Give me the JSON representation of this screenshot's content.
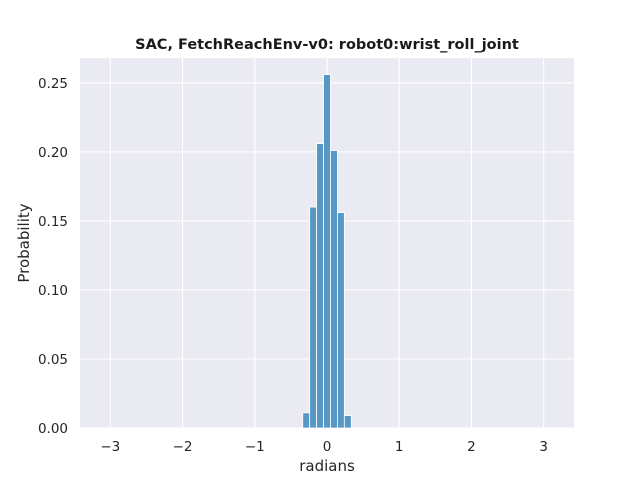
{
  "chart_data": {
    "type": "bar",
    "title": "SAC, FetchReachEnv-v0: robot0:wrist_roll_joint",
    "xlabel": "radians",
    "ylabel": "Probability",
    "xlim": [
      -3.42,
      3.42
    ],
    "ylim": [
      0,
      0.268
    ],
    "xticks": [
      -3,
      -2,
      -1,
      0,
      1,
      2,
      3
    ],
    "xtick_labels": [
      "−3",
      "−2",
      "−1",
      "0",
      "1",
      "2",
      "3"
    ],
    "yticks": [
      0,
      0.05,
      0.1,
      0.15,
      0.2,
      0.25
    ],
    "ytick_labels": [
      "0.00",
      "0.05",
      "0.10",
      "0.15",
      "0.20",
      "0.25"
    ],
    "grid": true,
    "bin_width": 0.096,
    "bins": [
      {
        "x_start": -0.336,
        "value": 0.011
      },
      {
        "x_start": -0.24,
        "value": 0.16
      },
      {
        "x_start": -0.144,
        "value": 0.206
      },
      {
        "x_start": -0.048,
        "value": 0.256
      },
      {
        "x_start": 0.048,
        "value": 0.201
      },
      {
        "x_start": 0.144,
        "value": 0.156
      },
      {
        "x_start": 0.24,
        "value": 0.009
      }
    ],
    "colors": {
      "background": "#eaeaf2",
      "grid": "#ffffff",
      "bar_fill": "#5697c6",
      "bar_edge": "#ffffff"
    }
  }
}
